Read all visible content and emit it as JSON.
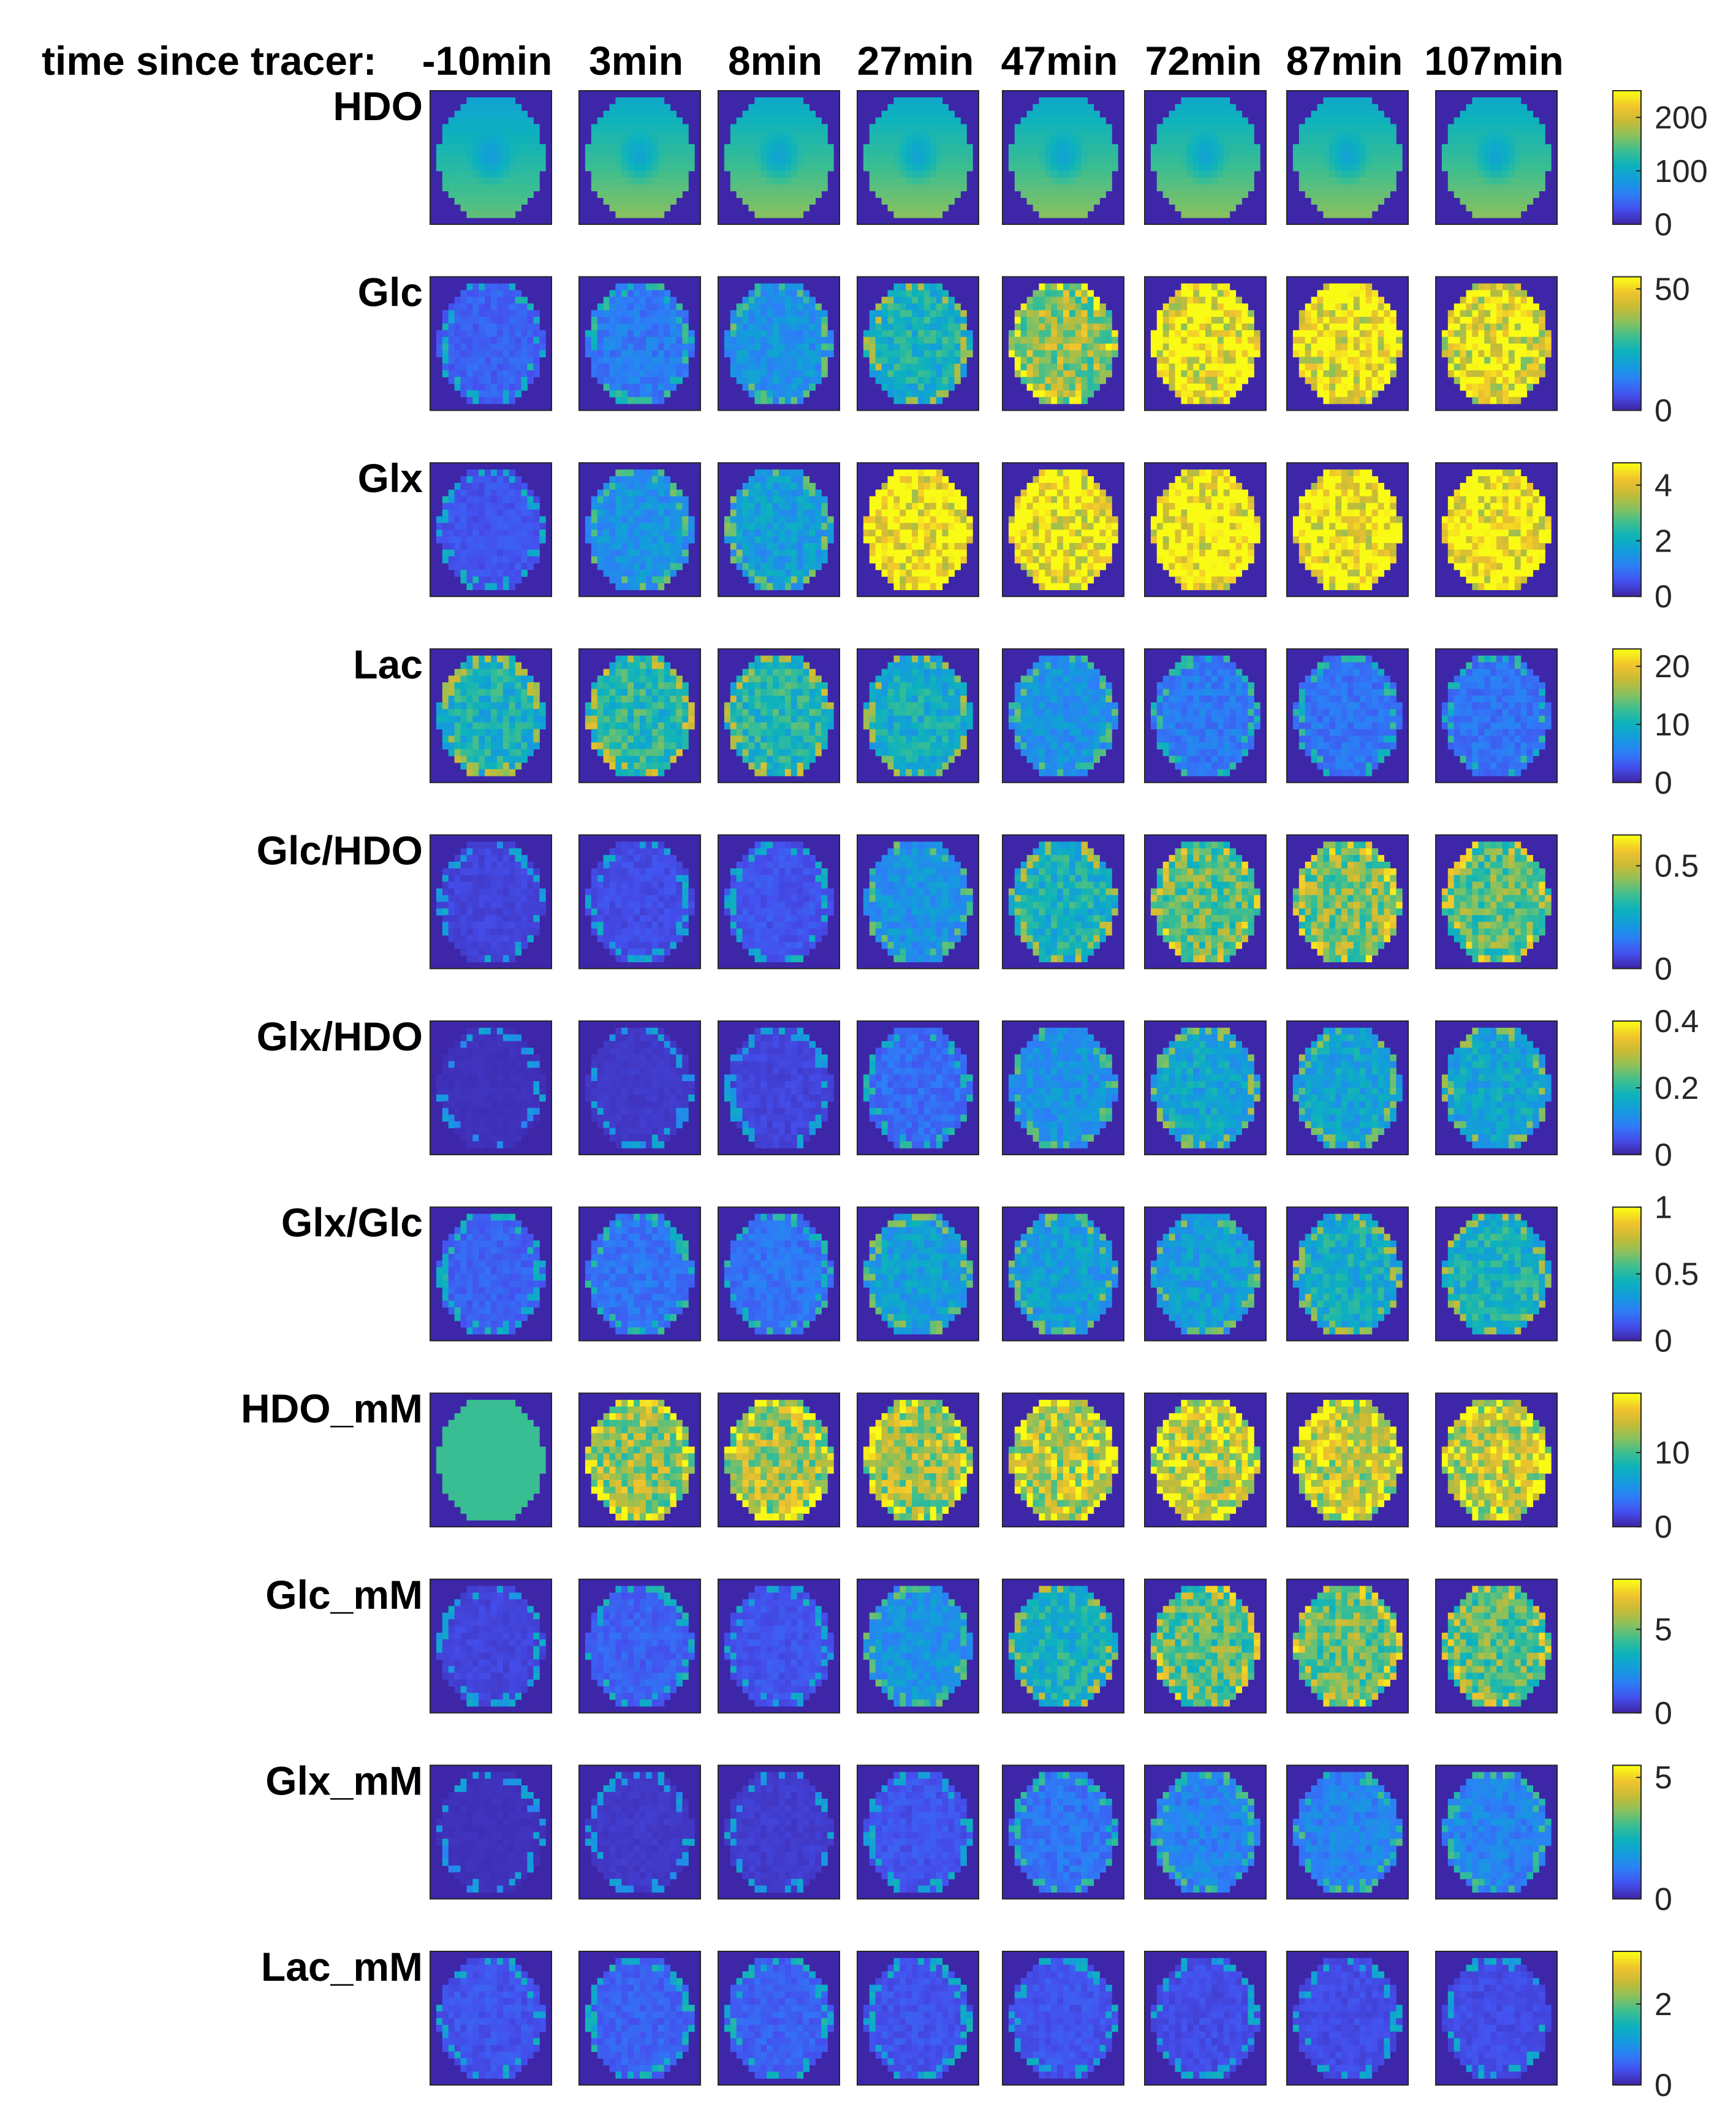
{
  "figure": {
    "header_label": "time since tracer:"
  },
  "chart_data": {
    "type": "heatmap",
    "columns": [
      "-10min",
      "3min",
      "8min",
      "27min",
      "47min",
      "72min",
      "87min",
      "107min"
    ],
    "rows": [
      {
        "name": "HDO",
        "clim": [
          0,
          250
        ],
        "colorbar_ticks": [
          0,
          100,
          200
        ],
        "colorbar_labels": [
          "0",
          "100",
          "200"
        ]
      },
      {
        "name": "Glc",
        "clim": [
          0,
          55
        ],
        "colorbar_ticks": [
          0,
          50
        ],
        "colorbar_labels": [
          "0",
          "50"
        ]
      },
      {
        "name": "Glx",
        "clim": [
          0,
          4.8
        ],
        "colorbar_ticks": [
          0,
          2,
          4
        ],
        "colorbar_labels": [
          "0",
          "2",
          "4"
        ]
      },
      {
        "name": "Lac",
        "clim": [
          0,
          23
        ],
        "colorbar_ticks": [
          0,
          10,
          20
        ],
        "colorbar_labels": [
          "0",
          "10",
          "20"
        ]
      },
      {
        "name": "Glc/HDO",
        "clim": [
          0,
          0.65
        ],
        "colorbar_ticks": [
          0,
          0.5
        ],
        "colorbar_labels": [
          "0",
          "0.5"
        ]
      },
      {
        "name": "Glx/HDO",
        "clim": [
          0,
          0.4
        ],
        "colorbar_ticks": [
          0,
          0.2,
          0.4
        ],
        "colorbar_labels": [
          "0",
          "0.2",
          "0.4"
        ]
      },
      {
        "name": "Glx/Glc",
        "clim": [
          0,
          1
        ],
        "colorbar_ticks": [
          0,
          0.5,
          1
        ],
        "colorbar_labels": [
          "0",
          "0.5",
          "1"
        ]
      },
      {
        "name": "HDO_mM",
        "clim": [
          0,
          18
        ],
        "colorbar_ticks": [
          0,
          10
        ],
        "colorbar_labels": [
          "0",
          "10"
        ]
      },
      {
        "name": "Glc_mM",
        "clim": [
          0,
          8
        ],
        "colorbar_ticks": [
          0,
          5
        ],
        "colorbar_labels": [
          "0",
          "5"
        ]
      },
      {
        "name": "Glx_mM",
        "clim": [
          0,
          5.5
        ],
        "colorbar_ticks": [
          0,
          5
        ],
        "colorbar_labels": [
          "0",
          "5"
        ]
      },
      {
        "name": "Lac_mM",
        "clim": [
          0,
          3.3
        ],
        "colorbar_ticks": [
          0,
          2
        ],
        "colorbar_labels": [
          "0",
          "2"
        ]
      }
    ],
    "mean_level_by_row": [
      [
        0.55,
        0.6,
        0.6,
        0.6,
        0.6,
        0.6,
        0.6,
        0.6
      ],
      [
        0.15,
        0.22,
        0.3,
        0.45,
        0.7,
        0.95,
        0.95,
        0.9
      ],
      [
        0.12,
        0.3,
        0.35,
        1.0,
        1.0,
        1.0,
        1.0,
        1.0
      ],
      [
        0.45,
        0.5,
        0.48,
        0.42,
        0.3,
        0.22,
        0.2,
        0.2
      ],
      [
        0.08,
        0.1,
        0.12,
        0.3,
        0.45,
        0.6,
        0.65,
        0.6
      ],
      [
        0.03,
        0.05,
        0.08,
        0.18,
        0.3,
        0.38,
        0.38,
        0.38
      ],
      [
        0.15,
        0.2,
        0.2,
        0.35,
        0.35,
        0.35,
        0.42,
        0.45
      ],
      [
        0.55,
        0.7,
        0.72,
        0.72,
        0.78,
        0.8,
        0.8,
        0.8
      ],
      [
        0.08,
        0.15,
        0.12,
        0.3,
        0.45,
        0.6,
        0.62,
        0.6
      ],
      [
        0.03,
        0.05,
        0.06,
        0.12,
        0.2,
        0.25,
        0.25,
        0.25
      ],
      [
        0.12,
        0.15,
        0.15,
        0.12,
        0.12,
        0.1,
        0.1,
        0.1
      ]
    ],
    "colormap": "parula",
    "colormap_stops": [
      "#3e26a8",
      "#4450ee",
      "#2d7ef7",
      "#149cdc",
      "#0db2bd",
      "#3bbe91",
      "#89c15d",
      "#c7bb36",
      "#f1c32e",
      "#f9fb15"
    ],
    "background_color": "#3e26a8"
  }
}
